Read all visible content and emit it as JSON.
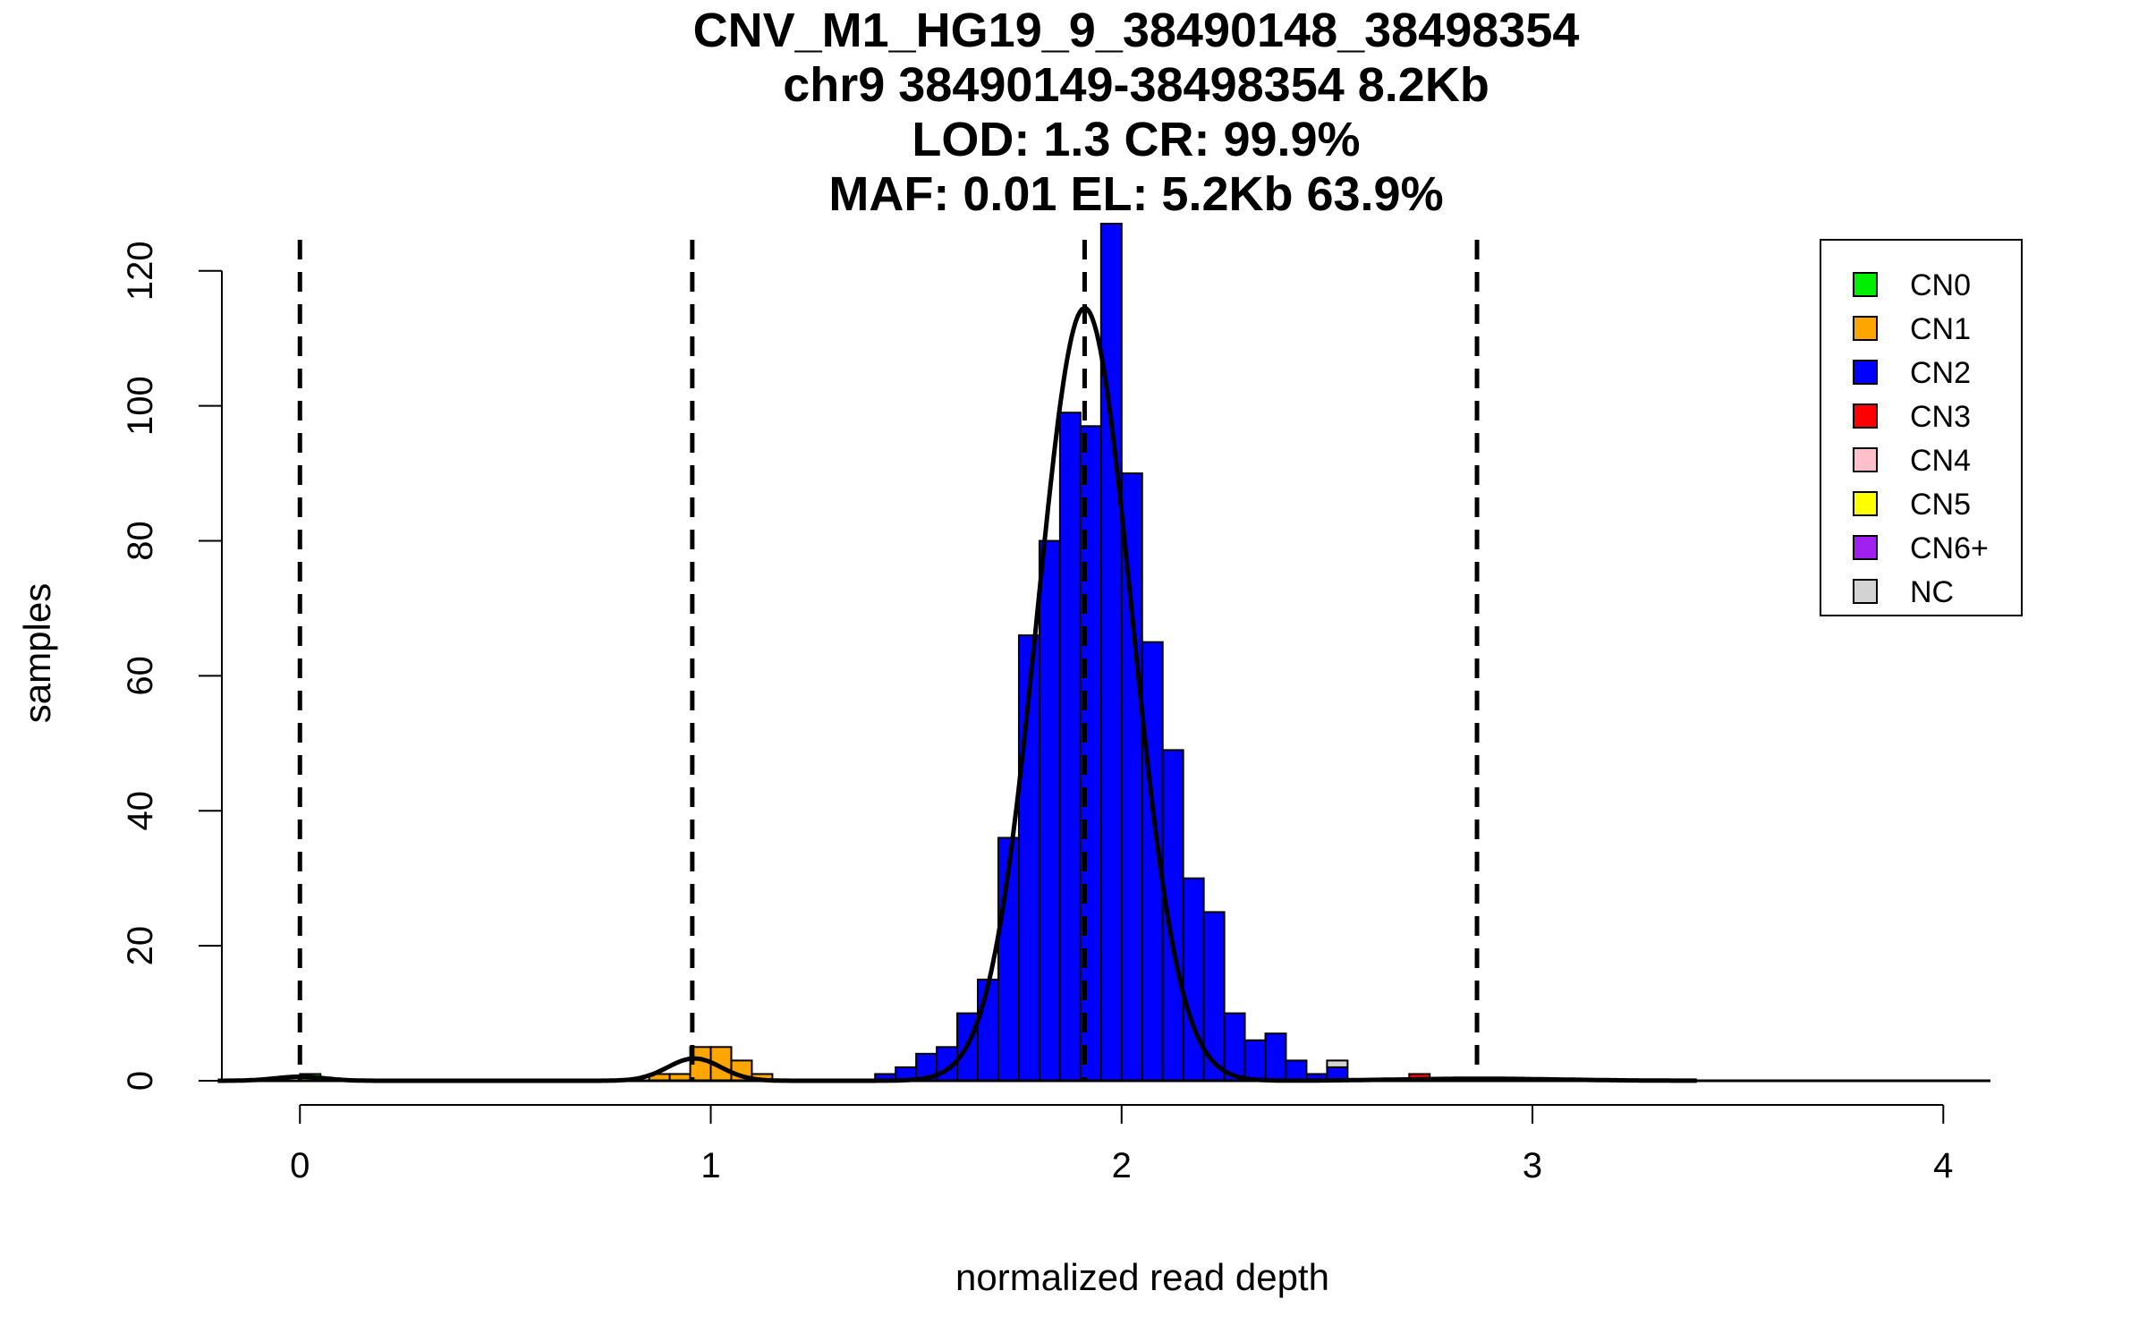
{
  "chart_data": {
    "type": "bar",
    "title_lines": [
      "CNV_M1_HG19_9_38490148_38498354",
      "chr9 38490149-38498354 8.2Kb",
      "LOD: 1.3 CR: 99.9%",
      "MAF: 0.01 EL: 5.2Kb 63.9%"
    ],
    "xlabel": "normalized read depth",
    "ylabel": "samples",
    "xlim": [
      -0.19,
      4.13
    ],
    "ylim": [
      0,
      127
    ],
    "x_ticks": [
      0,
      1,
      2,
      3,
      4
    ],
    "x_tick_labels": [
      "0",
      "1",
      "2",
      "3",
      "4"
    ],
    "y_ticks": [
      0,
      20,
      40,
      60,
      80,
      100,
      120
    ],
    "y_tick_labels": [
      "0",
      "20",
      "40",
      "60",
      "80",
      "100",
      "120"
    ],
    "bin_width": 0.05,
    "colors": {
      "CN0": "#00ee00",
      "CN1": "#ffa500",
      "CN2": "#0000ff",
      "CN3": "#ff0000",
      "CN4": "#ffc0cb",
      "CN5": "#ffff00",
      "CN6+": "#a020f0",
      "NC": "#d3d3d3"
    },
    "legend": {
      "position": "top-right",
      "entries": [
        "CN0",
        "CN1",
        "CN2",
        "CN3",
        "CN4",
        "CN5",
        "CN6+",
        "NC"
      ]
    },
    "bins": [
      {
        "x": 0.0,
        "segments": [
          {
            "class": "CN0",
            "count": 1
          }
        ]
      },
      {
        "x": 0.85,
        "segments": [
          {
            "class": "CN1",
            "count": 1
          }
        ]
      },
      {
        "x": 0.9,
        "segments": [
          {
            "class": "CN1",
            "count": 1
          }
        ]
      },
      {
        "x": 0.95,
        "segments": [
          {
            "class": "CN1",
            "count": 5
          }
        ]
      },
      {
        "x": 1.0,
        "segments": [
          {
            "class": "CN1",
            "count": 5
          }
        ]
      },
      {
        "x": 1.05,
        "segments": [
          {
            "class": "CN1",
            "count": 3
          }
        ]
      },
      {
        "x": 1.1,
        "segments": [
          {
            "class": "CN1",
            "count": 1
          }
        ]
      },
      {
        "x": 1.4,
        "segments": [
          {
            "class": "CN2",
            "count": 1
          }
        ]
      },
      {
        "x": 1.45,
        "segments": [
          {
            "class": "CN2",
            "count": 2
          }
        ]
      },
      {
        "x": 1.5,
        "segments": [
          {
            "class": "CN2",
            "count": 4
          }
        ]
      },
      {
        "x": 1.55,
        "segments": [
          {
            "class": "CN2",
            "count": 5
          }
        ]
      },
      {
        "x": 1.6,
        "segments": [
          {
            "class": "CN2",
            "count": 10
          }
        ]
      },
      {
        "x": 1.65,
        "segments": [
          {
            "class": "CN2",
            "count": 15
          }
        ]
      },
      {
        "x": 1.7,
        "segments": [
          {
            "class": "CN2",
            "count": 36
          }
        ]
      },
      {
        "x": 1.75,
        "segments": [
          {
            "class": "CN2",
            "count": 66
          }
        ]
      },
      {
        "x": 1.8,
        "segments": [
          {
            "class": "CN2",
            "count": 80
          }
        ]
      },
      {
        "x": 1.85,
        "segments": [
          {
            "class": "CN2",
            "count": 99
          }
        ]
      },
      {
        "x": 1.9,
        "segments": [
          {
            "class": "CN2",
            "count": 97
          }
        ]
      },
      {
        "x": 1.95,
        "segments": [
          {
            "class": "CN2",
            "count": 127
          }
        ]
      },
      {
        "x": 2.0,
        "segments": [
          {
            "class": "CN2",
            "count": 90
          }
        ]
      },
      {
        "x": 2.05,
        "segments": [
          {
            "class": "CN2",
            "count": 65
          }
        ]
      },
      {
        "x": 2.1,
        "segments": [
          {
            "class": "CN2",
            "count": 49
          }
        ]
      },
      {
        "x": 2.15,
        "segments": [
          {
            "class": "CN2",
            "count": 30
          }
        ]
      },
      {
        "x": 2.2,
        "segments": [
          {
            "class": "CN2",
            "count": 25
          }
        ]
      },
      {
        "x": 2.25,
        "segments": [
          {
            "class": "CN2",
            "count": 10
          }
        ]
      },
      {
        "x": 2.3,
        "segments": [
          {
            "class": "CN2",
            "count": 6
          }
        ]
      },
      {
        "x": 2.35,
        "segments": [
          {
            "class": "CN2",
            "count": 7
          }
        ]
      },
      {
        "x": 2.4,
        "segments": [
          {
            "class": "CN2",
            "count": 3
          }
        ]
      },
      {
        "x": 2.45,
        "segments": [
          {
            "class": "CN2",
            "count": 1
          }
        ]
      },
      {
        "x": 2.5,
        "segments": [
          {
            "class": "CN2",
            "count": 2
          },
          {
            "class": "NC",
            "count": 1
          }
        ]
      },
      {
        "x": 2.7,
        "segments": [
          {
            "class": "CN3",
            "count": 1
          }
        ]
      }
    ],
    "copy_number_lines": [
      0.0,
      0.955,
      1.91,
      2.865
    ],
    "density_components": [
      {
        "class": "CN0",
        "mean": 0.0,
        "sd": 0.06,
        "peak": 0.6
      },
      {
        "class": "CN1",
        "mean": 0.96,
        "sd": 0.065,
        "peak": 3.3
      },
      {
        "class": "CN2",
        "mean": 1.91,
        "sd": 0.115,
        "peak": 114.5
      },
      {
        "class": "CN3",
        "mean": 2.87,
        "sd": 0.2,
        "peak": 0.3
      }
    ]
  }
}
